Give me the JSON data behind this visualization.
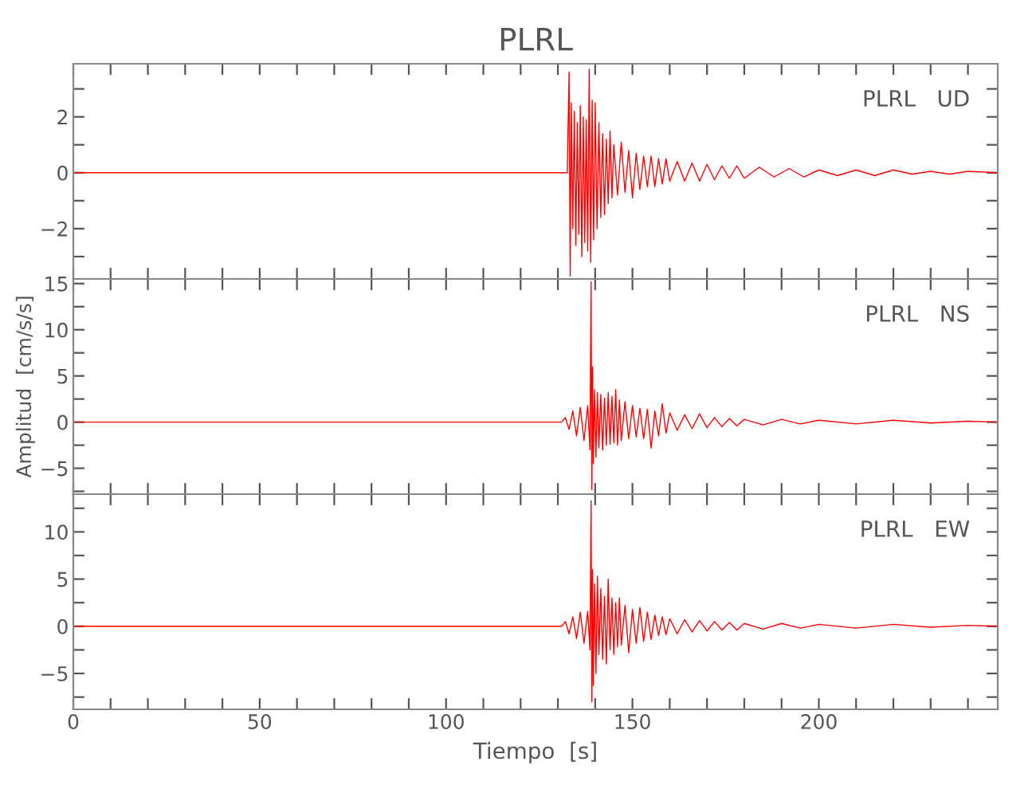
{
  "chart_data": [
    {
      "type": "line",
      "title": "PLRL",
      "annotations": [
        "PLRL   UD"
      ],
      "tick_labels": "y",
      "line_style": "solid",
      "marker": "none",
      "grid": false,
      "legend": false,
      "xlim": [
        0,
        248
      ],
      "ylim": [
        -3.8,
        3.9
      ],
      "xticks": [
        0,
        {
          "value": 10,
          "label": null
        },
        {
          "value": 20,
          "label": null
        },
        {
          "value": 30,
          "label": null
        },
        {
          "value": 40,
          "label": null
        },
        50,
        {
          "value": 60,
          "label": null
        },
        {
          "value": 70,
          "label": null
        },
        {
          "value": 80,
          "label": null
        },
        {
          "value": 90,
          "label": null
        },
        100,
        {
          "value": 110,
          "label": null
        },
        {
          "value": 120,
          "label": null
        },
        {
          "value": 130,
          "label": null
        },
        {
          "value": 140,
          "label": null
        },
        150,
        {
          "value": 160,
          "label": null
        },
        {
          "value": 170,
          "label": null
        },
        {
          "value": 180,
          "label": null
        },
        {
          "value": 190,
          "label": null
        },
        200,
        {
          "value": 210,
          "label": null
        },
        {
          "value": 220,
          "label": null
        },
        {
          "value": 230,
          "label": null
        },
        {
          "value": 240,
          "label": null
        }
      ],
      "yticks": [
        {
          "value": -3,
          "label": null
        },
        {
          "value": -2,
          "label": "−2"
        },
        {
          "value": -1,
          "label": null
        },
        0,
        {
          "value": 1,
          "label": null
        },
        2,
        {
          "value": 3,
          "label": null
        }
      ],
      "series": [
        {
          "color": "#ff0000",
          "x": [
            0,
            20,
            40,
            60,
            80,
            100,
            120,
            132.5,
            133,
            133.3,
            133.6,
            134,
            134.4,
            134.8,
            135.2,
            135.6,
            136,
            136.4,
            136.8,
            137.2,
            137.6,
            138,
            138.4,
            138.8,
            139.2,
            139.6,
            140,
            140.5,
            141,
            141.5,
            142,
            142.5,
            143,
            143.5,
            144,
            144.5,
            145,
            146,
            147,
            148,
            149,
            150,
            151,
            152,
            153,
            154,
            155,
            156,
            157,
            158,
            159,
            160,
            162,
            164,
            166,
            168,
            170,
            172,
            174,
            176,
            178,
            180,
            184,
            188,
            192,
            196,
            200,
            205,
            210,
            215,
            220,
            225,
            230,
            235,
            240,
            248
          ],
          "values": [
            0,
            0,
            0,
            0,
            0,
            0,
            0,
            0,
            3.6,
            -3.7,
            2.5,
            -2.0,
            2.2,
            -2.6,
            1.8,
            -2.2,
            2.4,
            -3.0,
            2.0,
            -2.5,
            1.9,
            -2.8,
            3.7,
            -3.2,
            2.6,
            -2.4,
            2.5,
            -2.0,
            1.8,
            -1.6,
            1.4,
            -1.5,
            1.2,
            -1.1,
            1.5,
            -0.9,
            1.0,
            -0.8,
            1.1,
            -0.7,
            0.8,
            -0.9,
            0.7,
            -0.6,
            0.6,
            -0.5,
            0.6,
            -0.5,
            0.5,
            -0.4,
            0.5,
            -0.3,
            0.4,
            -0.3,
            0.35,
            -0.3,
            0.3,
            -0.25,
            0.25,
            -0.2,
            0.25,
            -0.2,
            0.2,
            -0.15,
            0.15,
            -0.15,
            0.1,
            -0.1,
            0.1,
            -0.1,
            0.1,
            -0.05,
            0.05,
            -0.05,
            0.05,
            0
          ]
        }
      ]
    },
    {
      "type": "line",
      "ylabel": "Amplitud  [cm/s/s]",
      "annotations": [
        "PLRL   NS"
      ],
      "tick_labels": "y",
      "line_style": "solid",
      "marker": "none",
      "grid": false,
      "legend": false,
      "xlim": [
        0,
        248
      ],
      "ylim": [
        -7.8,
        15.5
      ],
      "xticks": [
        0,
        {
          "value": 10,
          "label": null
        },
        {
          "value": 20,
          "label": null
        },
        {
          "value": 30,
          "label": null
        },
        {
          "value": 40,
          "label": null
        },
        50,
        {
          "value": 60,
          "label": null
        },
        {
          "value": 70,
          "label": null
        },
        {
          "value": 80,
          "label": null
        },
        {
          "value": 90,
          "label": null
        },
        100,
        {
          "value": 110,
          "label": null
        },
        {
          "value": 120,
          "label": null
        },
        {
          "value": 130,
          "label": null
        },
        {
          "value": 140,
          "label": null
        },
        150,
        {
          "value": 160,
          "label": null
        },
        {
          "value": 170,
          "label": null
        },
        {
          "value": 180,
          "label": null
        },
        {
          "value": 190,
          "label": null
        },
        200,
        {
          "value": 210,
          "label": null
        },
        {
          "value": 220,
          "label": null
        },
        {
          "value": 230,
          "label": null
        },
        {
          "value": 240,
          "label": null
        }
      ],
      "yticks": [
        {
          "value": -7.5,
          "label": null
        },
        {
          "value": -5,
          "label": "−5"
        },
        {
          "value": -2.5,
          "label": null
        },
        0,
        {
          "value": 2.5,
          "label": null
        },
        5,
        {
          "value": 7.5,
          "label": null
        },
        10,
        {
          "value": 12.5,
          "label": null
        },
        15
      ],
      "series": [
        {
          "color": "#ff0000",
          "x": [
            0,
            20,
            40,
            60,
            80,
            100,
            120,
            131,
            132,
            133,
            134,
            135,
            136,
            137,
            138,
            138.6,
            138.9,
            139.1,
            139.3,
            139.5,
            139.8,
            140.2,
            140.6,
            141,
            141.5,
            142,
            142.5,
            143,
            143.5,
            144,
            144.5,
            145,
            145.5,
            146,
            146.5,
            147,
            148,
            149,
            150,
            151,
            152,
            153,
            154,
            155,
            156,
            157,
            158,
            159,
            160,
            162,
            164,
            166,
            168,
            170,
            172,
            174,
            176,
            178,
            180,
            185,
            190,
            195,
            200,
            210,
            220,
            230,
            240,
            248
          ],
          "values": [
            0,
            0,
            0,
            0,
            0,
            0,
            0,
            0,
            0.5,
            -0.8,
            1.2,
            -1.5,
            1.6,
            -2.0,
            1.8,
            -3.0,
            15.2,
            -7.3,
            6.0,
            -4.5,
            3.5,
            -3.8,
            3.2,
            -2.8,
            3.0,
            -3.0,
            2.6,
            -2.5,
            3.2,
            -2.4,
            2.8,
            -2.2,
            3.5,
            -2.5,
            2.4,
            -2.0,
            2.2,
            -1.8,
            1.8,
            -1.6,
            1.5,
            -1.8,
            1.4,
            -2.8,
            1.2,
            -1.5,
            2.0,
            -1.2,
            1.0,
            -0.9,
            0.8,
            -0.7,
            0.9,
            -0.6,
            0.5,
            -0.5,
            0.4,
            -0.4,
            0.3,
            -0.3,
            0.3,
            -0.2,
            0.2,
            -0.2,
            0.2,
            -0.1,
            0.1,
            0
          ]
        }
      ]
    },
    {
      "type": "line",
      "xlabel": "Tiempo  [s]",
      "annotations": [
        "PLRL   EW"
      ],
      "line_style": "solid",
      "marker": "none",
      "grid": false,
      "legend": false,
      "xlim": [
        0,
        248
      ],
      "ylim": [
        -8.8,
        14
      ],
      "xticks": [
        0,
        {
          "value": 10,
          "label": null
        },
        {
          "value": 20,
          "label": null
        },
        {
          "value": 30,
          "label": null
        },
        {
          "value": 40,
          "label": null
        },
        50,
        {
          "value": 60,
          "label": null
        },
        {
          "value": 70,
          "label": null
        },
        {
          "value": 80,
          "label": null
        },
        {
          "value": 90,
          "label": null
        },
        100,
        {
          "value": 110,
          "label": null
        },
        {
          "value": 120,
          "label": null
        },
        {
          "value": 130,
          "label": null
        },
        {
          "value": 140,
          "label": null
        },
        150,
        {
          "value": 160,
          "label": null
        },
        {
          "value": 170,
          "label": null
        },
        {
          "value": 180,
          "label": null
        },
        {
          "value": 190,
          "label": null
        },
        200,
        {
          "value": 210,
          "label": null
        },
        {
          "value": 220,
          "label": null
        },
        {
          "value": 230,
          "label": null
        },
        {
          "value": 240,
          "label": null
        }
      ],
      "yticks": [
        {
          "value": -7.5,
          "label": null
        },
        {
          "value": -5,
          "label": "−5"
        },
        {
          "value": -2.5,
          "label": null
        },
        0,
        {
          "value": 2.5,
          "label": null
        },
        5,
        {
          "value": 7.5,
          "label": null
        },
        10,
        {
          "value": 12.5,
          "label": null
        }
      ],
      "series": [
        {
          "color": "#ff0000",
          "x": [
            0,
            20,
            40,
            60,
            80,
            100,
            120,
            131,
            132,
            133,
            134,
            135,
            136,
            137,
            138,
            138.6,
            138.9,
            139.1,
            139.3,
            139.5,
            139.8,
            140.2,
            140.6,
            141,
            141.5,
            142,
            142.5,
            143,
            143.5,
            144,
            144.5,
            145,
            145.5,
            146,
            146.5,
            147,
            148,
            149,
            150,
            151,
            152,
            153,
            154,
            155,
            156,
            157,
            158,
            159,
            160,
            162,
            164,
            166,
            168,
            170,
            172,
            174,
            176,
            178,
            180,
            185,
            190,
            195,
            200,
            210,
            220,
            230,
            240,
            248
          ],
          "values": [
            0,
            0,
            0,
            0,
            0,
            0,
            0,
            0,
            0.5,
            -0.8,
            1.0,
            -1.3,
            1.5,
            -1.8,
            1.6,
            -2.5,
            13.3,
            -8.0,
            6.0,
            -6.3,
            4.5,
            -5.0,
            5.3,
            -3.0,
            4.0,
            -3.5,
            3.2,
            -4.0,
            5.0,
            -2.5,
            3.0,
            -3.0,
            2.5,
            -2.2,
            3.0,
            -2.0,
            2.2,
            -2.8,
            1.8,
            -1.8,
            2.0,
            -1.6,
            1.5,
            -1.4,
            1.2,
            -1.0,
            1.0,
            -0.9,
            0.8,
            -0.8,
            0.7,
            -0.6,
            0.6,
            -0.5,
            0.5,
            -0.4,
            0.4,
            -0.4,
            0.3,
            -0.3,
            0.3,
            -0.2,
            0.2,
            -0.2,
            0.2,
            -0.1,
            0.1,
            0
          ]
        }
      ]
    }
  ]
}
